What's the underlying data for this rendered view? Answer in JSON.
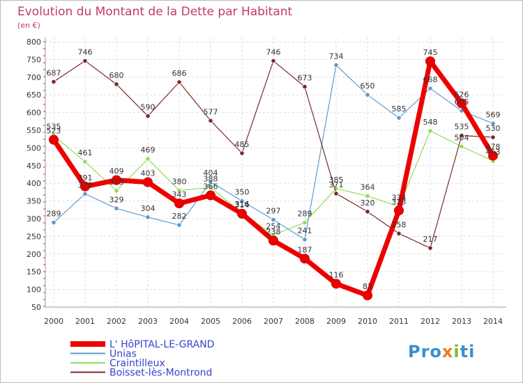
{
  "chart_data": {
    "type": "line",
    "title": "Evolution du Montant de la Dette par Habitant",
    "subtitle": "(en €)",
    "categories": [
      "2000",
      "2001",
      "2002",
      "2003",
      "2004",
      "2005",
      "2006",
      "2007",
      "2008",
      "2009",
      "2010",
      "2011",
      "2012",
      "2013",
      "2014"
    ],
    "ylim": [
      50,
      800
    ],
    "yticks": [
      50,
      100,
      150,
      200,
      250,
      300,
      350,
      400,
      450,
      500,
      550,
      600,
      650,
      700,
      750,
      800
    ],
    "grid": true,
    "legend_position": "bottom-left",
    "series": [
      {
        "name": "L' HôPITAL-LE-GRAND",
        "color": "#ee0000",
        "values": [
          523,
          391,
          409,
          403,
          343,
          366,
          314,
          238,
          187,
          116,
          83,
          323,
          745,
          626,
          478
        ]
      },
      {
        "name": "Unias",
        "color": "#5b9bd0",
        "values": [
          289,
          370,
          329,
          304,
          282,
          404,
          350,
          297,
          241,
          734,
          650,
          585,
          668,
          605,
          569
        ]
      },
      {
        "name": "Craintilleux",
        "color": "#8fdc5a",
        "values": [
          535,
          461,
          379,
          469,
          380,
          388,
          316,
          254,
          289,
          385,
          364,
          334,
          548,
          504,
          463
        ]
      },
      {
        "name": "Boisset-lès-Montrond",
        "color": "#7a2a2a",
        "values": [
          687,
          746,
          680,
          590,
          686,
          577,
          485,
          746,
          673,
          371,
          320,
          258,
          217,
          535,
          530
        ]
      }
    ]
  },
  "logo": {
    "p1": "Pro",
    "p2": "x",
    "p3": "i",
    "p4": "ti"
  }
}
